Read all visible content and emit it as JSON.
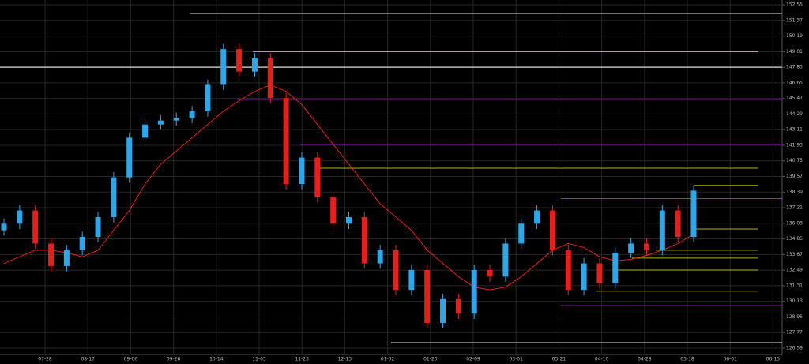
{
  "chart_data": {
    "type": "candlestick",
    "x_labels": [
      "07-28",
      "08-17",
      "09-06",
      "09-26",
      "10-14",
      "11-03",
      "11-23",
      "12-13",
      "01-02",
      "01-20",
      "02-09",
      "03-01",
      "03-21",
      "04-10",
      "04-28",
      "05-18",
      "06-01",
      "06-15"
    ],
    "ylim": [
      126.11,
      152.91
    ],
    "yticks": [
      152.55,
      151.37,
      150.19,
      149.01,
      147.83,
      146.65,
      145.47,
      144.29,
      143.11,
      141.93,
      140.75,
      139.57,
      138.39,
      137.21,
      136.03,
      134.85,
      133.67,
      132.49,
      131.31,
      130.13,
      128.95,
      127.77,
      126.59
    ],
    "grid": true,
    "up_color": "#2ea6ea",
    "down_color": "#e3201c",
    "candles": {
      "open": [
        135.5,
        136.0,
        137.0,
        134.5,
        132.8,
        134.0,
        135.0,
        136.5,
        139.5,
        142.5,
        143.5,
        143.8,
        144.0,
        144.5,
        146.5,
        149.2,
        147.5,
        148.5,
        145.5,
        139.0,
        141.0,
        138.0,
        136.0,
        136.5,
        133.0,
        134.0,
        131.0,
        132.5,
        128.5,
        130.3,
        129.2,
        132.5,
        132.0,
        134.5,
        136.0,
        137.0,
        134.0,
        131.0,
        133.0,
        131.5,
        133.8,
        134.5,
        134.0,
        137.0,
        135.0
      ],
      "high": [
        136.4,
        137.4,
        137.4,
        134.9,
        134.4,
        135.4,
        136.9,
        139.9,
        142.9,
        143.9,
        144.2,
        144.4,
        144.9,
        146.9,
        149.6,
        149.6,
        148.9,
        148.9,
        145.9,
        141.4,
        141.4,
        138.4,
        136.9,
        136.9,
        134.4,
        134.4,
        132.9,
        132.9,
        130.7,
        130.7,
        132.9,
        132.9,
        134.9,
        136.4,
        137.4,
        137.4,
        134.4,
        133.4,
        133.4,
        134.2,
        134.9,
        134.9,
        137.4,
        137.4,
        138.9
      ],
      "low": [
        135.1,
        135.6,
        134.1,
        132.4,
        132.4,
        133.6,
        134.6,
        136.1,
        139.1,
        142.1,
        143.1,
        143.4,
        143.6,
        144.1,
        146.1,
        147.1,
        147.1,
        145.1,
        138.6,
        138.6,
        137.6,
        135.6,
        135.6,
        132.6,
        132.6,
        130.6,
        130.6,
        128.1,
        128.1,
        128.8,
        128.8,
        131.6,
        131.6,
        134.1,
        135.6,
        133.6,
        130.6,
        130.6,
        131.1,
        131.1,
        133.4,
        133.6,
        133.6,
        134.6,
        134.6
      ],
      "close": [
        136.0,
        137.0,
        134.5,
        132.8,
        134.0,
        135.0,
        136.5,
        139.5,
        142.5,
        143.5,
        143.8,
        144.0,
        144.5,
        146.5,
        149.2,
        147.5,
        148.5,
        145.5,
        139.0,
        141.0,
        138.0,
        136.0,
        136.5,
        133.0,
        134.0,
        131.0,
        132.5,
        128.5,
        130.3,
        129.2,
        132.5,
        132.0,
        134.5,
        136.0,
        137.0,
        134.0,
        131.0,
        133.0,
        131.5,
        133.8,
        134.5,
        134.0,
        137.0,
        135.0,
        138.5
      ]
    },
    "ma": {
      "color": "#e3201c",
      "values": [
        133.0,
        133.5,
        134.0,
        134.0,
        133.8,
        133.5,
        134.0,
        135.5,
        137.0,
        139.0,
        140.5,
        141.5,
        142.5,
        143.5,
        144.5,
        145.3,
        146.0,
        146.5,
        146.0,
        145.0,
        143.5,
        142.0,
        140.5,
        139.0,
        137.5,
        136.5,
        135.5,
        134.0,
        133.0,
        132.0,
        131.2,
        131.0,
        131.2,
        132.0,
        133.0,
        134.0,
        134.5,
        134.2,
        133.5,
        133.2,
        133.3,
        133.6,
        134.0,
        134.5,
        135.2
      ]
    },
    "levels": [
      {
        "value": 151.9,
        "color": "#bbbbbb"
      },
      {
        "value": 147.83,
        "color": "#bbbbbb"
      },
      {
        "value": 149.0,
        "color": "#b5b300"
      },
      {
        "value": 145.4,
        "color": "#9b27c4"
      },
      {
        "value": 142.0,
        "color": "#9b27c4"
      },
      {
        "value": 140.2,
        "color": "#b5b300"
      },
      {
        "value": 138.9,
        "color": "#b5b300"
      },
      {
        "value": 137.9,
        "color": "#9b27c4"
      },
      {
        "value": 135.6,
        "color": "#b5b300"
      },
      {
        "value": 134.0,
        "color": "#b5b300"
      },
      {
        "value": 133.4,
        "color": "#b5b300"
      },
      {
        "value": 132.5,
        "color": "#b5b300"
      },
      {
        "value": 130.9,
        "color": "#b5b300"
      },
      {
        "value": 129.8,
        "color": "#9b27c4"
      },
      {
        "value": 127.0,
        "color": "#bbbbbb"
      }
    ]
  }
}
